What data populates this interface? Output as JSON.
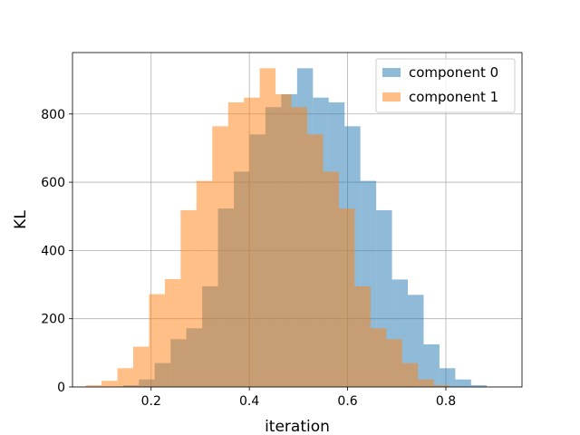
{
  "chart_data": {
    "type": "bar",
    "title": "",
    "xlabel": "iteration",
    "ylabel": "KL",
    "xlim": [
      0.04,
      0.955
    ],
    "ylim": [
      0,
      980
    ],
    "grid": true,
    "legend_placement": "top-right",
    "x_ticks": [
      {
        "value": 0.2,
        "label": "0.2"
      },
      {
        "value": 0.4,
        "label": "0.4"
      },
      {
        "value": 0.6,
        "label": "0.6"
      },
      {
        "value": 0.8,
        "label": "0.8"
      }
    ],
    "y_ticks": [
      {
        "value": 0,
        "label": "0"
      },
      {
        "value": 200,
        "label": "200"
      },
      {
        "value": 400,
        "label": "400"
      },
      {
        "value": 600,
        "label": "600"
      },
      {
        "value": 800,
        "label": "800"
      }
    ],
    "series": [
      {
        "name": "component 0",
        "color": "#1f77b4",
        "alpha": 0.5,
        "bin_start": 0.143,
        "bin_width": 0.0322,
        "values": [
          5,
          22,
          70,
          140,
          172,
          295,
          523,
          631,
          740,
          820,
          858,
          934,
          848,
          834,
          764,
          604,
          518,
          315,
          270,
          125,
          55,
          22,
          5
        ]
      },
      {
        "name": "component 1",
        "color": "#ff7f0e",
        "alpha": 0.5,
        "bin_start": 0.067,
        "bin_width": 0.0322,
        "values": [
          5,
          18,
          55,
          118,
          272,
          316,
          518,
          604,
          764,
          834,
          848,
          934,
          858,
          820,
          740,
          631,
          523,
          295,
          172,
          140,
          70,
          22,
          5
        ]
      }
    ]
  }
}
